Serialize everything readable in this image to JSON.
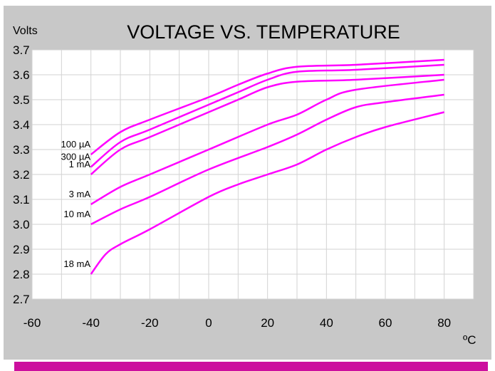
{
  "chart_data": {
    "type": "line",
    "title": "VOLTAGE VS. TEMPERATURE",
    "ylabel": "Volts",
    "xlabel": "ºC",
    "xlim": [
      -60,
      90
    ],
    "ylim": [
      2.7,
      3.7
    ],
    "x_ticks": [
      "-60",
      "-40",
      "-20",
      "0",
      "20",
      "40",
      "60",
      "80"
    ],
    "y_ticks": [
      "3.7",
      "3.6",
      "3.5",
      "3.4",
      "3.3",
      "3.2",
      "3.1",
      "3.0",
      "2.9",
      "2.8",
      "2.7"
    ],
    "grid": true,
    "line_color": "#ff00ff",
    "series": [
      {
        "name": "100 µA",
        "points": [
          [
            -40,
            3.28
          ],
          [
            -30,
            3.37
          ],
          [
            -20,
            3.42
          ],
          [
            0,
            3.51
          ],
          [
            10,
            3.56
          ],
          [
            20,
            3.605
          ],
          [
            30,
            3.632
          ],
          [
            50,
            3.64
          ],
          [
            80,
            3.66
          ]
        ]
      },
      {
        "name": "300 µA",
        "points": [
          [
            -40,
            3.23
          ],
          [
            -30,
            3.33
          ],
          [
            -20,
            3.38
          ],
          [
            0,
            3.48
          ],
          [
            10,
            3.53
          ],
          [
            20,
            3.58
          ],
          [
            30,
            3.612
          ],
          [
            50,
            3.62
          ],
          [
            80,
            3.64
          ]
        ]
      },
      {
        "name": "1 mA",
        "points": [
          [
            -40,
            3.2
          ],
          [
            -30,
            3.3
          ],
          [
            -20,
            3.35
          ],
          [
            0,
            3.45
          ],
          [
            10,
            3.5
          ],
          [
            20,
            3.55
          ],
          [
            30,
            3.572
          ],
          [
            50,
            3.58
          ],
          [
            80,
            3.6
          ]
        ]
      },
      {
        "name": "3 mA",
        "points": [
          [
            -40,
            3.08
          ],
          [
            -30,
            3.15
          ],
          [
            -20,
            3.2
          ],
          [
            0,
            3.3
          ],
          [
            20,
            3.4
          ],
          [
            30,
            3.44
          ],
          [
            40,
            3.5
          ],
          [
            50,
            3.54
          ],
          [
            80,
            3.58
          ]
        ]
      },
      {
        "name": "10 mA",
        "points": [
          [
            -40,
            3.0
          ],
          [
            -30,
            3.06
          ],
          [
            -20,
            3.11
          ],
          [
            0,
            3.22
          ],
          [
            20,
            3.31
          ],
          [
            30,
            3.36
          ],
          [
            40,
            3.42
          ],
          [
            50,
            3.47
          ],
          [
            60,
            3.49
          ],
          [
            80,
            3.52
          ]
        ]
      },
      {
        "name": "18 mA",
        "points": [
          [
            -40,
            2.8
          ],
          [
            -35,
            2.88
          ],
          [
            -30,
            2.92
          ],
          [
            -20,
            2.98
          ],
          [
            0,
            3.11
          ],
          [
            10,
            3.16
          ],
          [
            20,
            3.2
          ],
          [
            30,
            3.24
          ],
          [
            40,
            3.3
          ],
          [
            50,
            3.35
          ],
          [
            60,
            3.39
          ],
          [
            80,
            3.45
          ]
        ]
      }
    ]
  }
}
